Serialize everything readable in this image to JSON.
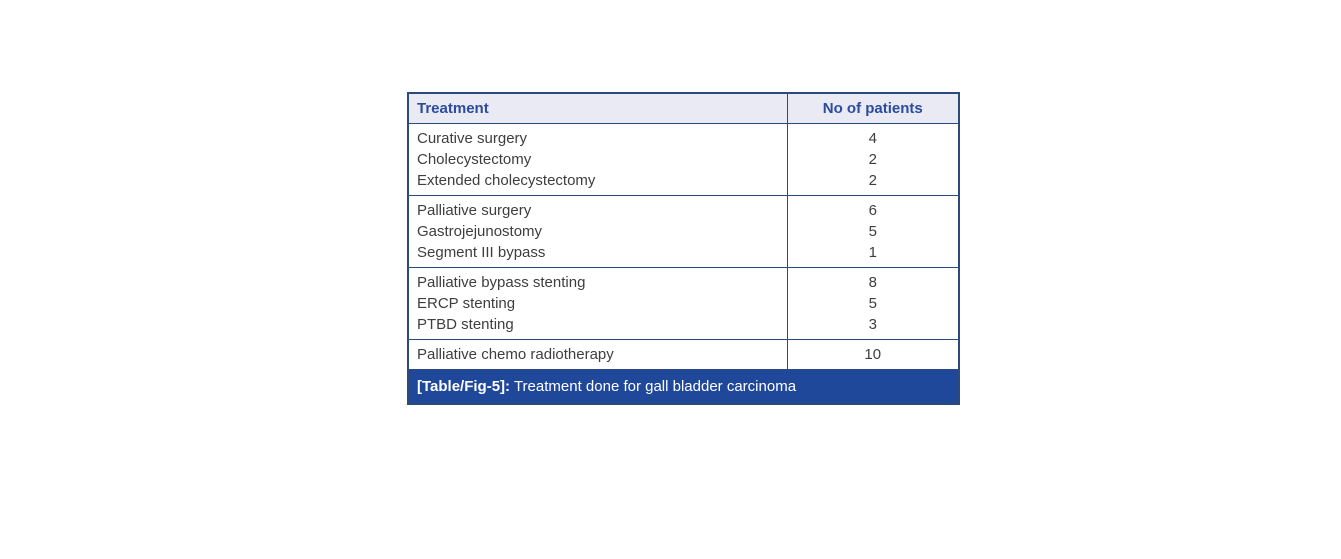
{
  "colors": {
    "header_bg": "#e9eaf3",
    "header_text": "#2b4b9d",
    "border": "#2c4a7b",
    "body_text": "#3e3e3e",
    "caption_bg": "#1f489a",
    "caption_text": "#ffffff"
  },
  "table": {
    "header": {
      "treatment": "Treatment",
      "patients": "No of patients"
    },
    "groups": [
      {
        "rows": [
          {
            "treatment": "Curative surgery",
            "patients": "4"
          },
          {
            "treatment": "Cholecystectomy",
            "patients": "2"
          },
          {
            "treatment": "Extended cholecystectomy",
            "patients": "2"
          }
        ]
      },
      {
        "rows": [
          {
            "treatment": "Palliative surgery",
            "patients": "6"
          },
          {
            "treatment": "Gastrojejunostomy",
            "patients": "5"
          },
          {
            "treatment": "Segment III bypass",
            "patients": "1"
          }
        ]
      },
      {
        "rows": [
          {
            "treatment": "Palliative bypass stenting",
            "patients": "8"
          },
          {
            "treatment": "ERCP stenting",
            "patients": "5"
          },
          {
            "treatment": "PTBD stenting",
            "patients": "3"
          }
        ]
      },
      {
        "rows": [
          {
            "treatment": "Palliative chemo radiotherapy",
            "patients": "10"
          }
        ]
      }
    ],
    "caption": {
      "label": "[Table/Fig-5]:",
      "text": " Treatment done for gall bladder carcinoma"
    }
  },
  "chart_data": {
    "type": "table",
    "title": "[Table/Fig-5]: Treatment done for gall bladder carcinoma",
    "columns": [
      "Treatment",
      "No of patients"
    ],
    "rows": [
      [
        "Curative surgery",
        4
      ],
      [
        "Cholecystectomy",
        2
      ],
      [
        "Extended cholecystectomy",
        2
      ],
      [
        "Palliative surgery",
        6
      ],
      [
        "Gastrojejunostomy",
        5
      ],
      [
        "Segment III bypass",
        1
      ],
      [
        "Palliative bypass stenting",
        8
      ],
      [
        "ERCP stenting",
        5
      ],
      [
        "PTBD stenting",
        3
      ],
      [
        "Palliative chemo radiotherapy",
        10
      ]
    ]
  }
}
